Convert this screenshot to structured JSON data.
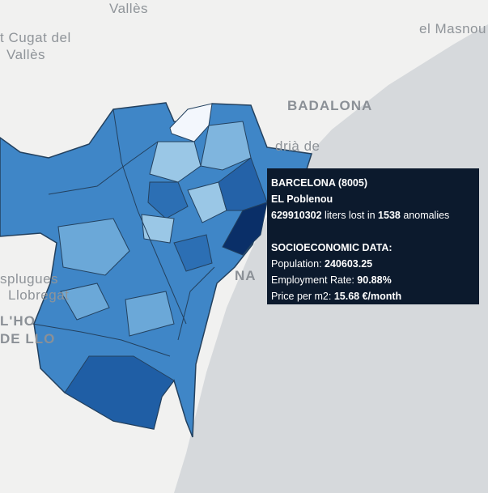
{
  "map": {
    "place_labels": [
      "Vallès",
      "t Cugat del",
      "Vallès",
      "el Masnou",
      "BADALONA",
      "drià de",
      "splugues",
      "Llobregat",
      "L'HO",
      "DE LLO",
      "NA"
    ]
  },
  "tooltip": {
    "title": "BARCELONA (8005)",
    "district": "EL Poblenou",
    "loss_value": "629910302",
    "loss_middle": " liters lost in ",
    "anomalies": "1538",
    "loss_end": " anomalies",
    "section": "SOCIOECONOMIC DATA:",
    "population_label": "Population: ",
    "population": "240603.25",
    "employment_label": "Employment Rate: ",
    "employment": "90.88%",
    "price_label": "Price per m2: ",
    "price": "15.68 €/month"
  }
}
